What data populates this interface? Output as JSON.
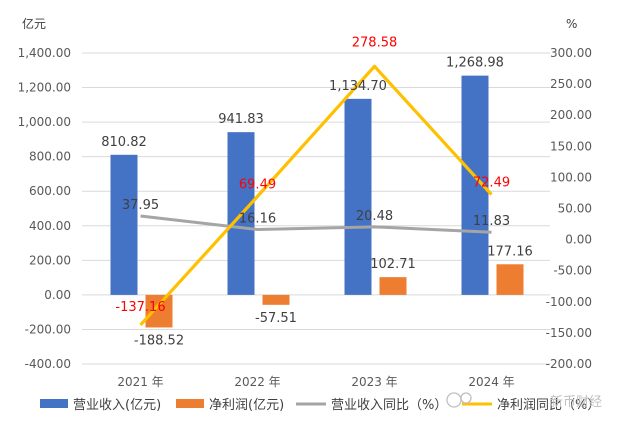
{
  "chart_data": {
    "type": "bar",
    "categories": [
      "2021 年",
      "2022 年",
      "2023 年",
      "2024 年"
    ],
    "left_unit": "亿元",
    "right_unit": "%",
    "y_left": {
      "min": -400,
      "max": 1400,
      "step": 200,
      "tick_labels": [
        "-400.00",
        "-200.00",
        "0.00",
        "200.00",
        "400.00",
        "600.00",
        "800.00",
        "1,000.00",
        "1,200.00",
        "1,400.00"
      ]
    },
    "y_right": {
      "min": -200,
      "max": 300,
      "step": 50,
      "tick_labels": [
        "-200.00",
        "-150.00",
        "-100.00",
        "-50.00",
        "0.00",
        "50.00",
        "100.00",
        "150.00",
        "200.00",
        "250.00",
        "300.00"
      ]
    },
    "series": [
      {
        "name": "营业收入(亿元)",
        "kind": "bar",
        "axis": "left",
        "color": "#4472c4",
        "values": [
          810.82,
          941.83,
          1134.7,
          1268.98
        ],
        "labels": [
          "810.82",
          "941.83",
          "1,134.70",
          "1,268.98"
        ]
      },
      {
        "name": "净利润(亿元)",
        "kind": "bar",
        "axis": "left",
        "color": "#ed7d31",
        "values": [
          -188.52,
          -57.51,
          102.71,
          177.16
        ],
        "labels": [
          "-188.52",
          "-57.51",
          "102.71",
          "177.16"
        ]
      },
      {
        "name": "营业收入同比（%）",
        "kind": "line",
        "axis": "right",
        "color": "#a5a5a5",
        "values": [
          37.95,
          16.16,
          20.48,
          11.83
        ],
        "labels": [
          "37.95",
          "16.16",
          "20.48",
          "11.83"
        ]
      },
      {
        "name": "净利润同比（%）",
        "kind": "line",
        "axis": "right",
        "color": "#ffc000",
        "values": [
          -137.16,
          69.49,
          278.58,
          72.49
        ],
        "labels": [
          "-137.16",
          "69.49",
          "278.58",
          "72.49"
        ]
      }
    ],
    "grid": true,
    "legend_position": "bottom",
    "watermark": "新币财经"
  }
}
